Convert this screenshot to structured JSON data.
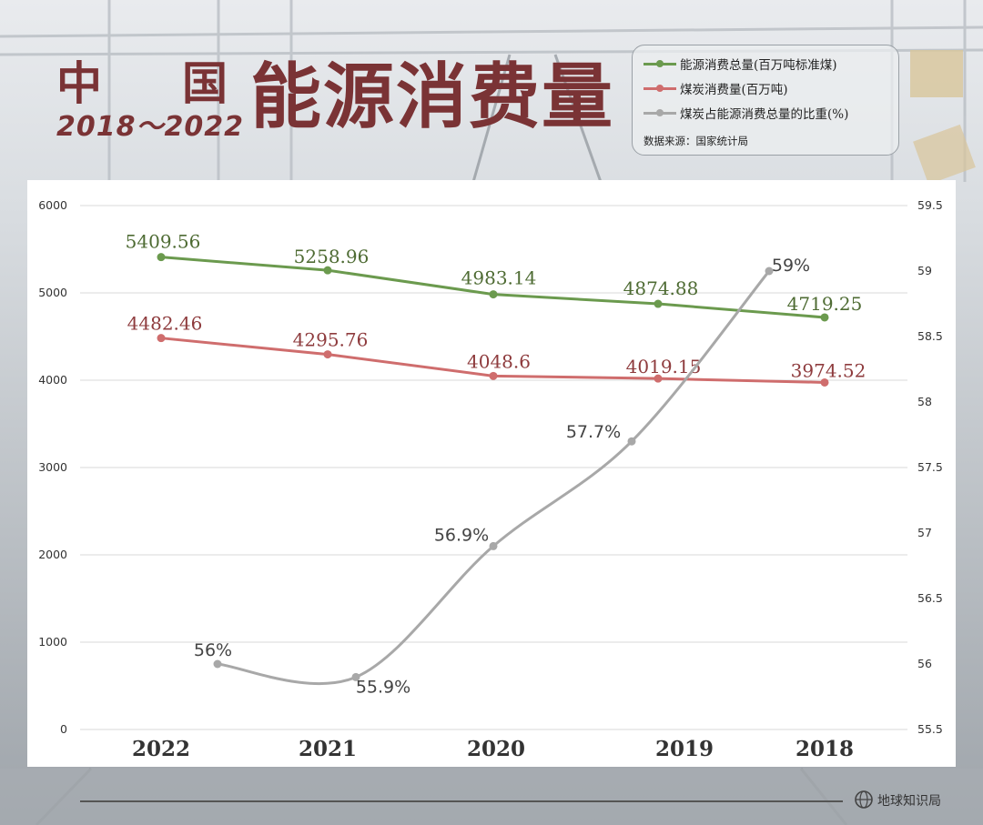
{
  "header": {
    "title_zhong": "中",
    "title_guo": "国",
    "title_main": "能源消费量",
    "title_years": "2018～2022"
  },
  "legend": {
    "items": [
      {
        "label": "能源消费总量(百万吨标准煤)",
        "color": "#6b9a4e"
      },
      {
        "label": "煤炭消费量(百万吨)",
        "color": "#cf6d6d"
      },
      {
        "label": "煤炭占能源消费总量的比重(%)",
        "color": "#a8a8a8"
      }
    ],
    "source": "数据来源：国家统计局"
  },
  "footer": {
    "brand": "地球知识局"
  },
  "chart_data": {
    "type": "line",
    "categories": [
      "2022",
      "2021",
      "2020",
      "2019",
      "2018"
    ],
    "series": [
      {
        "name": "能源消费总量(百万吨标准煤)",
        "axis": "left",
        "color": "#6b9a4e",
        "label_color": "#4e6b33",
        "values": [
          5409.56,
          5258.96,
          4983.14,
          4874.88,
          4719.25
        ],
        "labels": [
          "5409.56",
          "5258.96",
          "4983.14",
          "4874.88",
          "4719.25"
        ]
      },
      {
        "name": "煤炭消费量(百万吨)",
        "axis": "left",
        "color": "#cf6d6d",
        "label_color": "#8e3b3d",
        "values": [
          4482.46,
          4295.76,
          4048.6,
          4019.15,
          3974.52
        ],
        "labels": [
          "4482.46",
          "4295.76",
          "4048.6",
          "4019.15",
          "3974.52"
        ]
      },
      {
        "name": "煤炭占能源消费总量的比重(%)",
        "axis": "right",
        "color": "#a8a8a8",
        "label_color": "#444444",
        "values": [
          56,
          55.9,
          56.9,
          57.7,
          59
        ],
        "labels": [
          "56%",
          "55.9%",
          "56.9%",
          "57.7%",
          "59%"
        ]
      }
    ],
    "y_left": {
      "min": 0,
      "max": 6000,
      "ticks": [
        "0",
        "1000",
        "2000",
        "3000",
        "4000",
        "5000",
        "6000"
      ]
    },
    "y_right": {
      "min": 55.5,
      "max": 59.5,
      "ticks": [
        "55.5",
        "56",
        "56.5",
        "57",
        "57.5",
        "58",
        "58.5",
        "59",
        "59.5"
      ]
    },
    "grid": true
  }
}
